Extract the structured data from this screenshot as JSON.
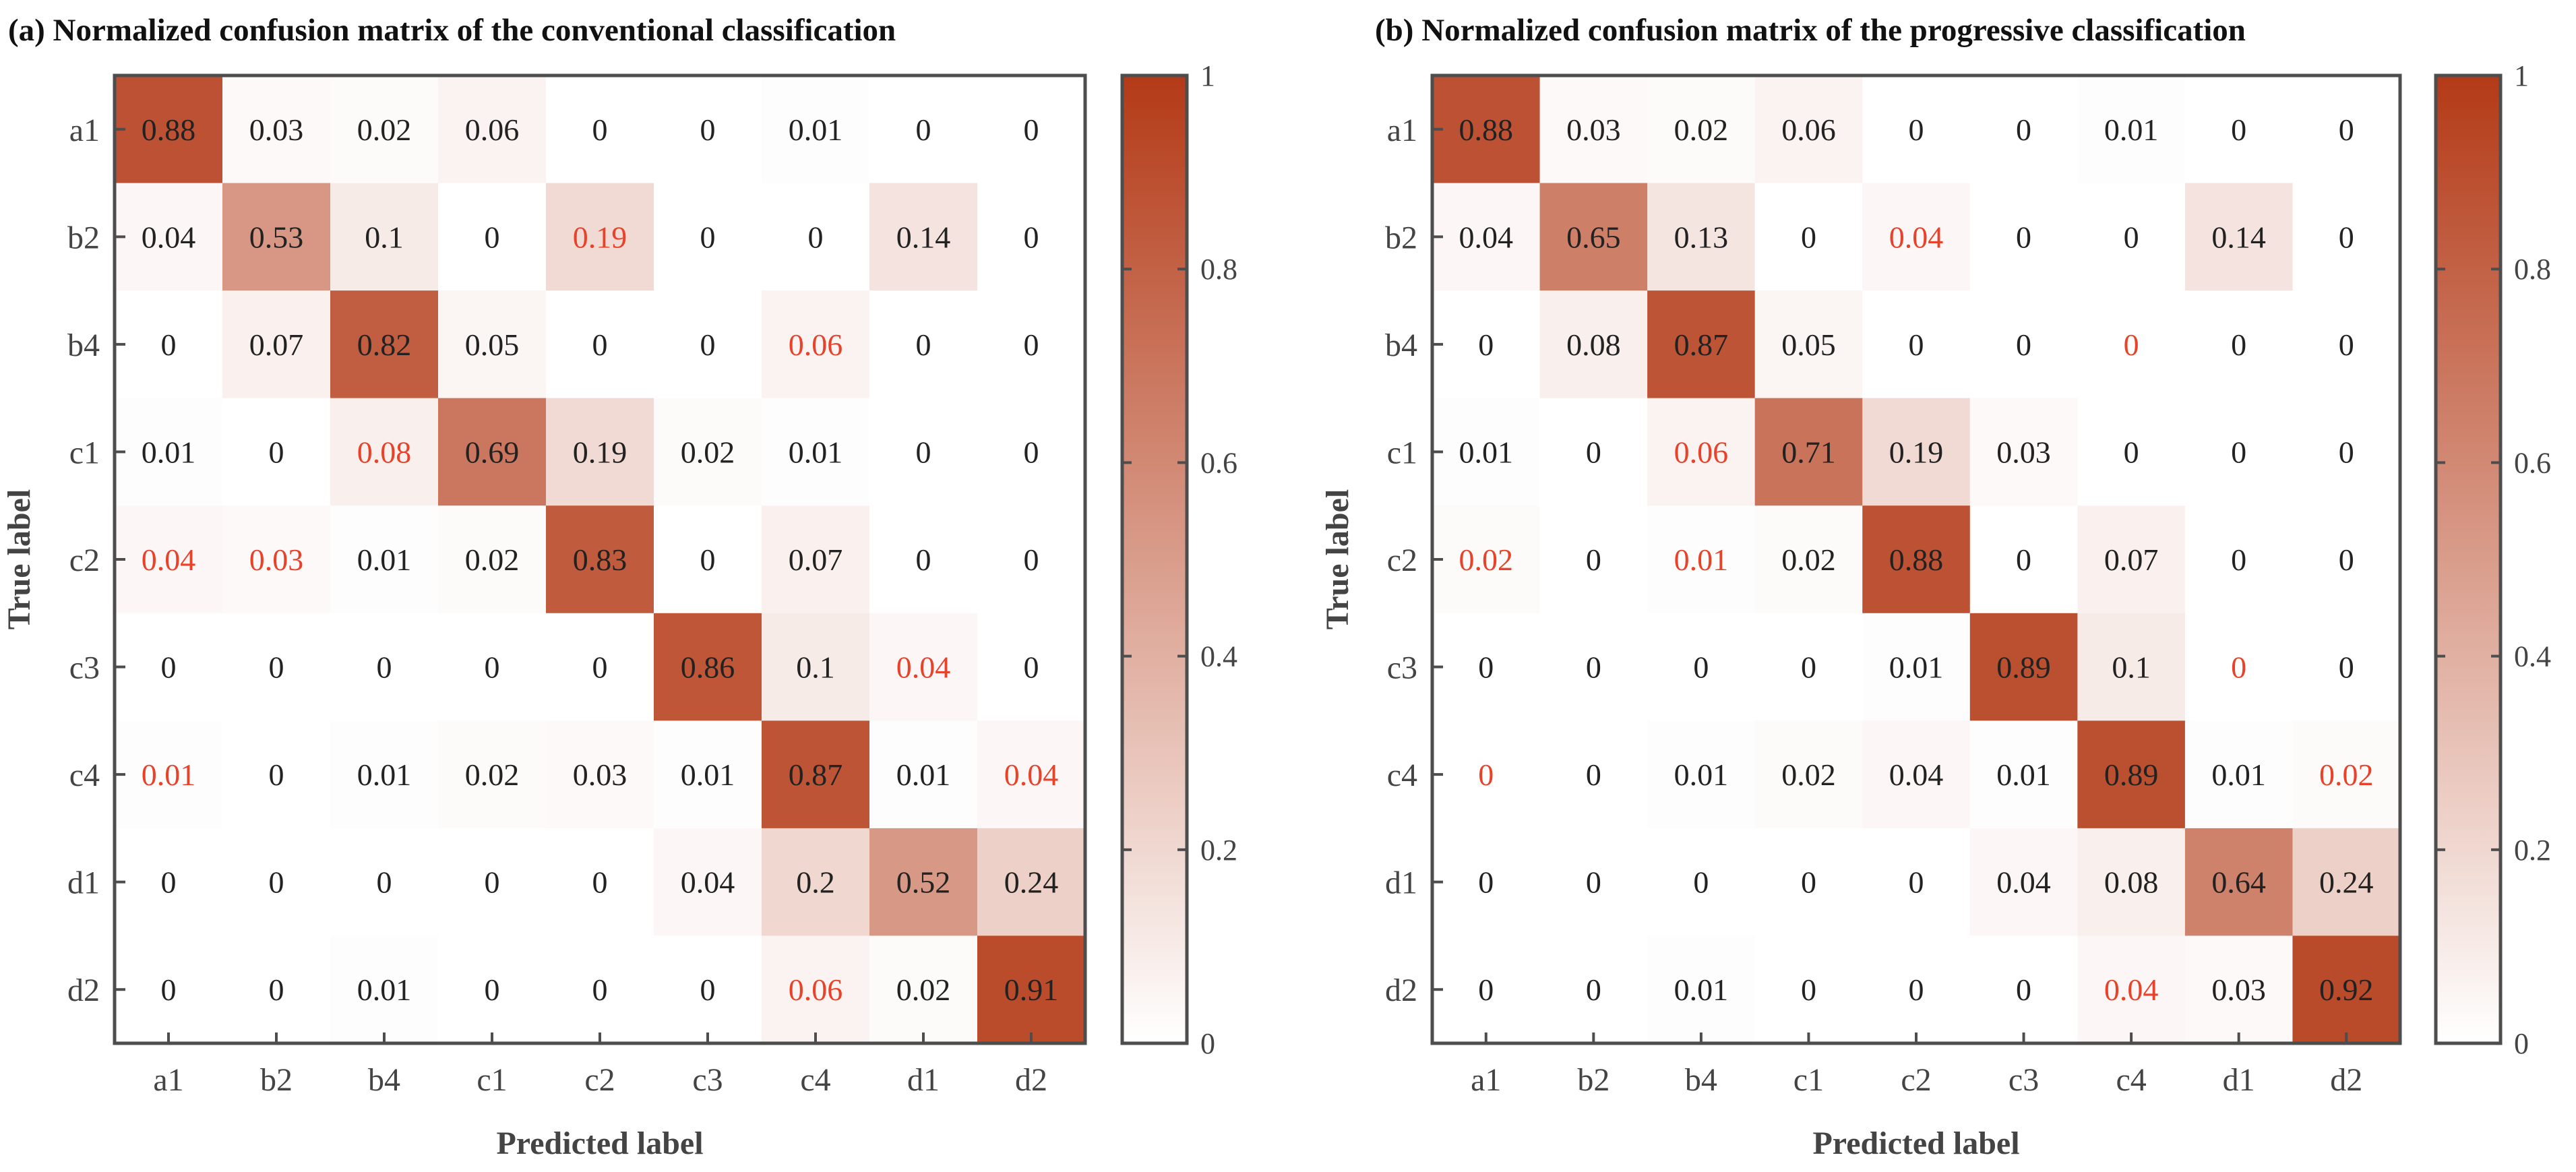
{
  "colors": {
    "low": "#ffffff",
    "high": "#b33a17",
    "frame": "#4d4d4d",
    "text_normal": "#222222",
    "text_highlight": "#e8432a"
  },
  "chart_data": [
    {
      "type": "heatmap",
      "title": "(a) Normalized confusion matrix of the conventional classification",
      "xlabel": "Predicted label",
      "ylabel": "True label",
      "x_categories": [
        "a1",
        "b2",
        "b4",
        "c1",
        "c2",
        "c3",
        "c4",
        "d1",
        "d2"
      ],
      "y_categories": [
        "a1",
        "b2",
        "b4",
        "c1",
        "c2",
        "c3",
        "c4",
        "d1",
        "d2"
      ],
      "values": [
        [
          0.88,
          0.03,
          0.02,
          0.06,
          0,
          0,
          0.01,
          0,
          0
        ],
        [
          0.04,
          0.53,
          0.1,
          0,
          0.19,
          0,
          0,
          0.14,
          0
        ],
        [
          0,
          0.07,
          0.82,
          0.05,
          0,
          0,
          0.06,
          0,
          0
        ],
        [
          0.01,
          0,
          0.08,
          0.69,
          0.19,
          0.02,
          0.01,
          0,
          0
        ],
        [
          0.04,
          0.03,
          0.01,
          0.02,
          0.83,
          0,
          0.07,
          0,
          0
        ],
        [
          0,
          0,
          0,
          0,
          0,
          0.86,
          0.1,
          0.04,
          0
        ],
        [
          0.01,
          0,
          0.01,
          0.02,
          0.03,
          0.01,
          0.87,
          0.01,
          0.04
        ],
        [
          0,
          0,
          0,
          0,
          0,
          0.04,
          0.2,
          0.52,
          0.24
        ],
        [
          0,
          0,
          0.01,
          0,
          0,
          0,
          0.06,
          0.02,
          0.91
        ]
      ],
      "labels": [
        [
          "0.88",
          "0.03",
          "0.02",
          "0.06",
          "0",
          "0",
          "0.01",
          "0",
          "0"
        ],
        [
          "0.04",
          "0.53",
          "0.1",
          "0",
          "0.19",
          "0",
          "0",
          "0.14",
          "0"
        ],
        [
          "0",
          "0.07",
          "0.82",
          "0.05",
          "0",
          "0",
          "0.06",
          "0",
          "0"
        ],
        [
          "0.01",
          "0",
          "0.08",
          "0.69",
          "0.19",
          "0.02",
          "0.01",
          "0",
          "0"
        ],
        [
          "0.04",
          "0.03",
          "0.01",
          "0.02",
          "0.83",
          "0",
          "0.07",
          "0",
          "0"
        ],
        [
          "0",
          "0",
          "0",
          "0",
          "0",
          "0.86",
          "0.1",
          "0.04",
          "0"
        ],
        [
          "0.01",
          "0",
          "0.01",
          "0.02",
          "0.03",
          "0.01",
          "0.87",
          "0.01",
          "0.04"
        ],
        [
          "0",
          "0",
          "0",
          "0",
          "0",
          "0.04",
          "0.2",
          "0.52",
          "0.24"
        ],
        [
          "0",
          "0",
          "0.01",
          "0",
          "0",
          "0",
          "0.06",
          "0.02",
          "0.91"
        ]
      ],
      "highlighted_cells": [
        [
          1,
          4
        ],
        [
          2,
          6
        ],
        [
          3,
          2
        ],
        [
          4,
          0
        ],
        [
          4,
          1
        ],
        [
          5,
          7
        ],
        [
          6,
          0
        ],
        [
          6,
          8
        ],
        [
          8,
          6
        ]
      ],
      "colorbar": {
        "range": [
          0,
          1
        ],
        "ticks": [
          "0",
          "0.2",
          "0.4",
          "0.6",
          "0.8",
          "1"
        ]
      }
    },
    {
      "type": "heatmap",
      "title": "(b) Normalized confusion matrix of the progressive classification",
      "xlabel": "Predicted label",
      "ylabel": "True label",
      "x_categories": [
        "a1",
        "b2",
        "b4",
        "c1",
        "c2",
        "c3",
        "c4",
        "d1",
        "d2"
      ],
      "y_categories": [
        "a1",
        "b2",
        "b4",
        "c1",
        "c2",
        "c3",
        "c4",
        "d1",
        "d2"
      ],
      "values": [
        [
          0.88,
          0.03,
          0.02,
          0.06,
          0,
          0,
          0.01,
          0,
          0
        ],
        [
          0.04,
          0.65,
          0.13,
          0,
          0.04,
          0,
          0,
          0.14,
          0
        ],
        [
          0,
          0.08,
          0.87,
          0.05,
          0,
          0,
          0,
          0,
          0
        ],
        [
          0.01,
          0,
          0.06,
          0.71,
          0.19,
          0.03,
          0,
          0,
          0
        ],
        [
          0.02,
          0,
          0.01,
          0.02,
          0.88,
          0,
          0.07,
          0,
          0
        ],
        [
          0,
          0,
          0,
          0,
          0.01,
          0.89,
          0.1,
          0,
          0
        ],
        [
          0,
          0,
          0.01,
          0.02,
          0.04,
          0.01,
          0.89,
          0.01,
          0.02
        ],
        [
          0,
          0,
          0,
          0,
          0,
          0.04,
          0.08,
          0.64,
          0.24
        ],
        [
          0,
          0,
          0.01,
          0,
          0,
          0,
          0.04,
          0.03,
          0.92
        ]
      ],
      "labels": [
        [
          "0.88",
          "0.03",
          "0.02",
          "0.06",
          "0",
          "0",
          "0.01",
          "0",
          "0"
        ],
        [
          "0.04",
          "0.65",
          "0.13",
          "0",
          "0.04",
          "0",
          "0",
          "0.14",
          "0"
        ],
        [
          "0",
          "0.08",
          "0.87",
          "0.05",
          "0",
          "0",
          "0",
          "0",
          "0"
        ],
        [
          "0.01",
          "0",
          "0.06",
          "0.71",
          "0.19",
          "0.03",
          "0",
          "0",
          "0"
        ],
        [
          "0.02",
          "0",
          "0.01",
          "0.02",
          "0.88",
          "0",
          "0.07",
          "0",
          "0"
        ],
        [
          "0",
          "0",
          "0",
          "0",
          "0.01",
          "0.89",
          "0.1",
          "0",
          "0"
        ],
        [
          "0",
          "0",
          "0.01",
          "0.02",
          "0.04",
          "0.01",
          "0.89",
          "0.01",
          "0.02"
        ],
        [
          "0",
          "0",
          "0",
          "0",
          "0",
          "0.04",
          "0.08",
          "0.64",
          "0.24"
        ],
        [
          "0",
          "0",
          "0.01",
          "0",
          "0",
          "0",
          "0.04",
          "0.03",
          "0.92"
        ]
      ],
      "highlighted_cells": [
        [
          1,
          4
        ],
        [
          2,
          6
        ],
        [
          3,
          2
        ],
        [
          4,
          0
        ],
        [
          4,
          2
        ],
        [
          5,
          7
        ],
        [
          6,
          0
        ],
        [
          6,
          8
        ],
        [
          8,
          6
        ]
      ],
      "colorbar": {
        "range": [
          0,
          1
        ],
        "ticks": [
          "0",
          "0.2",
          "0.4",
          "0.6",
          "0.8",
          "1"
        ]
      }
    }
  ]
}
